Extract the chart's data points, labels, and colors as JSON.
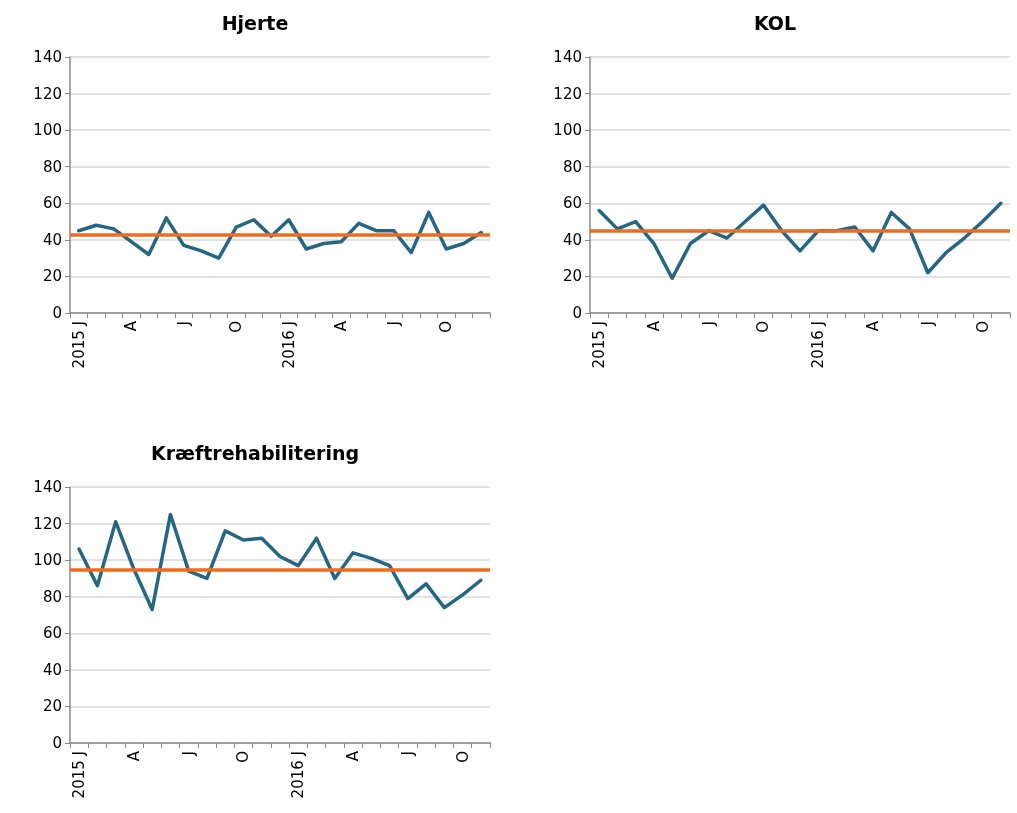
{
  "chart_data": [
    {
      "type": "line",
      "title": "Hjerte",
      "categories": [
        "2015 J",
        null,
        null,
        "A",
        null,
        null,
        "J",
        null,
        null,
        "O",
        null,
        null,
        "2016 J",
        null,
        null,
        "A",
        null,
        null,
        "J",
        null,
        null,
        "O",
        null,
        null
      ],
      "series": [
        {
          "color": "#256782",
          "values": [
            45,
            48,
            46,
            39,
            32,
            52,
            37,
            34,
            30,
            47,
            51,
            42,
            51,
            35,
            38,
            39,
            49,
            45,
            45,
            33,
            55,
            35,
            38,
            44
          ]
        }
      ],
      "ref_lines": [
        {
          "axis": "y",
          "value": 43,
          "color": "#f26b1d"
        }
      ],
      "ylim": [
        0,
        140
      ],
      "yticks": [
        0,
        20,
        40,
        60,
        80,
        100,
        120,
        140
      ],
      "grid": "y",
      "marker": "none",
      "line_style": "solid"
    },
    {
      "type": "line",
      "title": "KOL",
      "categories": [
        "2015 J",
        null,
        null,
        "A",
        null,
        null,
        "J",
        null,
        null,
        "O",
        null,
        null,
        "2016 J",
        null,
        null,
        "A",
        null,
        null,
        "J",
        null,
        null,
        "O",
        null
      ],
      "series": [
        {
          "color": "#256782",
          "values": [
            56,
            46,
            50,
            38,
            19,
            38,
            45,
            41,
            50,
            59,
            45,
            34,
            45,
            45,
            47,
            34,
            55,
            46,
            22,
            33,
            41,
            50,
            60
          ]
        }
      ],
      "ref_lines": [
        {
          "axis": "y",
          "value": 45,
          "color": "#f26b1d"
        }
      ],
      "ylim": [
        0,
        140
      ],
      "yticks": [
        0,
        20,
        40,
        60,
        80,
        100,
        120,
        140
      ],
      "grid": "y",
      "marker": "none",
      "line_style": "solid"
    },
    {
      "type": "line",
      "title": "Kræftrehabilitering",
      "categories": [
        "2015 J",
        null,
        null,
        "A",
        null,
        null,
        "J",
        null,
        null,
        "O",
        null,
        null,
        "2016 J",
        null,
        null,
        "A",
        null,
        null,
        "J",
        null,
        null,
        "O",
        null
      ],
      "series": [
        {
          "color": "#256782",
          "values": [
            106,
            86,
            121,
            95,
            73,
            125,
            94,
            90,
            116,
            111,
            112,
            102,
            97,
            112,
            90,
            104,
            101,
            97,
            79,
            87,
            74,
            81,
            89
          ]
        }
      ],
      "ref_lines": [
        {
          "axis": "y",
          "value": 95,
          "color": "#f26b1d"
        }
      ],
      "ylim": [
        0,
        140
      ],
      "yticks": [
        0,
        20,
        40,
        60,
        80,
        100,
        120,
        140
      ],
      "grid": "y",
      "marker": "none",
      "line_style": "solid"
    }
  ]
}
